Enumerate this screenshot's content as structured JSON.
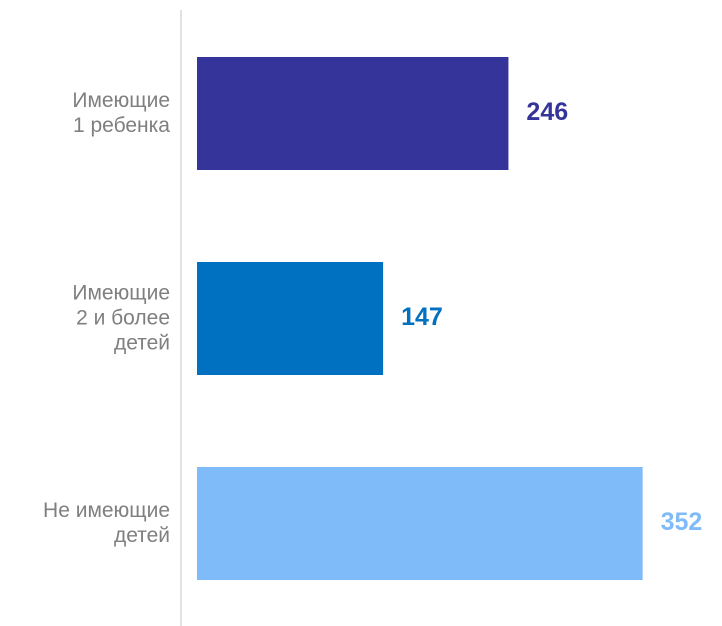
{
  "chart_data": {
    "type": "hbar",
    "categories": [
      [
        "Имеющие",
        "1 ребенка"
      ],
      [
        "Имеющие",
        "2 и более",
        "детей"
      ],
      [
        "Не имеющие",
        "детей"
      ]
    ],
    "values": [
      246,
      147,
      352
    ],
    "colors": [
      "#35349a",
      "#0070c0",
      "#7fbbf9"
    ]
  }
}
